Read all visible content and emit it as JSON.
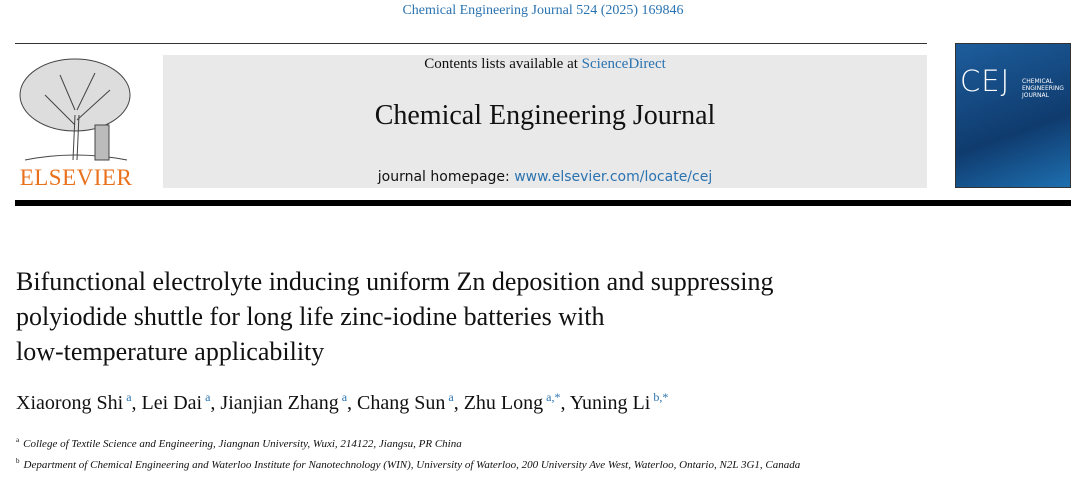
{
  "header": {
    "citation": "Chemical Engineering Journal 524 (2025) 169846",
    "publisher": "ELSEVIER",
    "contents_text": "Contents lists available at",
    "contents_link": "ScienceDirect",
    "journal": "Chemical Engineering Journal",
    "homepage_label": "journal homepage:",
    "homepage_url": "www.elsevier.com/locate/cej",
    "cover_abbreviation": "CEJ",
    "cover_title": "CHEMICAL ENGINEERING JOURNAL"
  },
  "article": {
    "title_lines": [
      "Bifunctional electrolyte inducing uniform Zn deposition and suppressing",
      "polyiodide shuttle for long life zinc-iodine batteries with",
      "low-temperature applicability"
    ],
    "authors": [
      {
        "name": "Xiaorong Shi",
        "affiliation": "a"
      },
      {
        "name": "Lei Dai",
        "affiliation": "a"
      },
      {
        "name": "Jianjian Zhang",
        "affiliation": "a"
      },
      {
        "name": "Chang Sun",
        "affiliation": "a"
      },
      {
        "name": "Zhu Long",
        "affiliation": "a,*"
      },
      {
        "name": "Yuning Li",
        "affiliation": "b,*"
      }
    ],
    "affiliations": [
      {
        "label": "a",
        "text": "College of Textile Science and Engineering, Jiangnan University, Wuxi, 214122, Jiangsu, PR China"
      },
      {
        "label": "b",
        "text": "Department of Chemical Engineering and Waterloo Institute for Nanotechnology (WIN), University of Waterloo, 200 University Ave West, Waterloo, Ontario, N2L 3G1, Canada"
      }
    ]
  }
}
